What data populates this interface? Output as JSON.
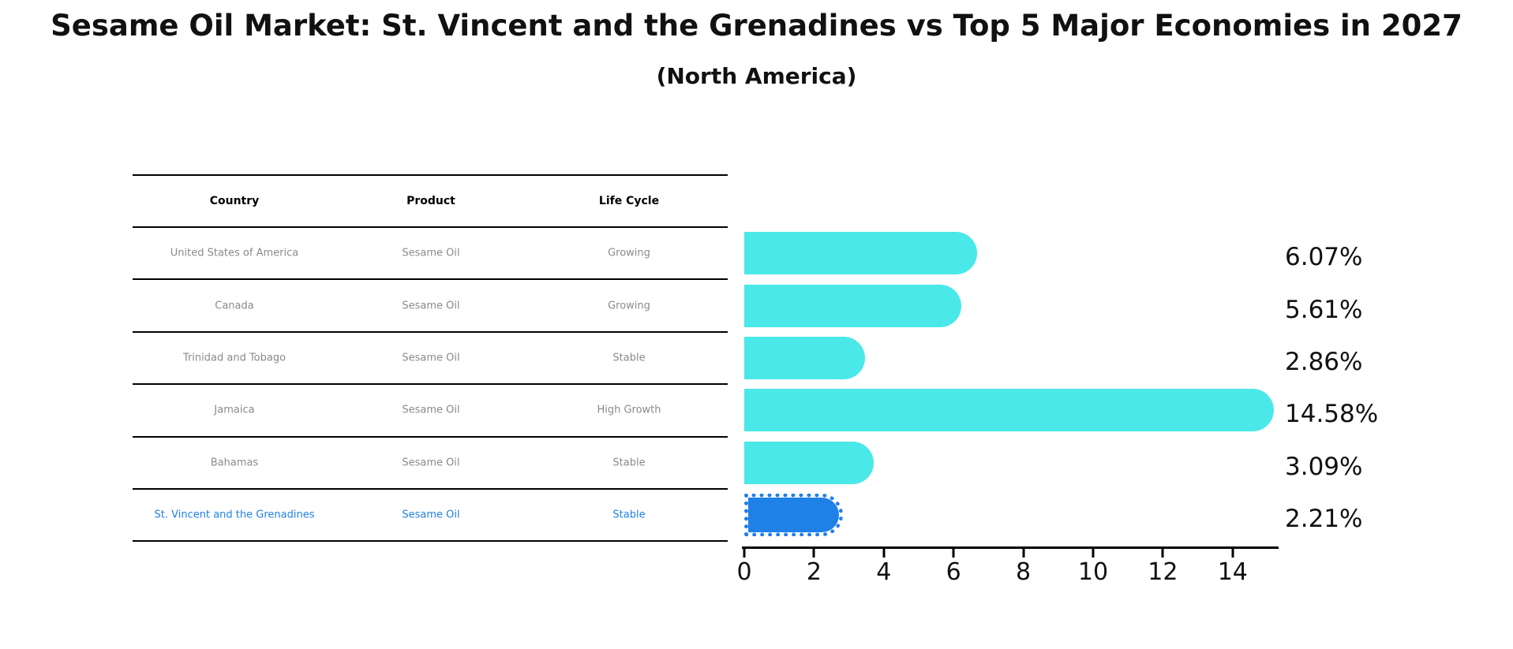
{
  "header": {
    "title": "Sesame Oil Market: St. Vincent and the Grenadines vs Top 5 Major Economies in 2027",
    "subtitle": "(North America)"
  },
  "table": {
    "columns": [
      "Country",
      "Product",
      "Life Cycle"
    ],
    "rows": [
      {
        "country": "United States of America",
        "product": "Sesame Oil",
        "life_cycle": "Growing",
        "highlight": false
      },
      {
        "country": "Canada",
        "product": "Sesame Oil",
        "life_cycle": "Growing",
        "highlight": false
      },
      {
        "country": "Trinidad and Tobago",
        "product": "Sesame Oil",
        "life_cycle": "Stable",
        "highlight": false
      },
      {
        "country": "Jamaica",
        "product": "Sesame Oil",
        "life_cycle": "High Growth",
        "highlight": false
      },
      {
        "country": "Bahamas",
        "product": "Sesame Oil",
        "life_cycle": "Stable",
        "highlight": false
      },
      {
        "country": "St. Vincent and the Grenadines",
        "product": "Sesame Oil",
        "life_cycle": "Stable",
        "highlight": true
      }
    ]
  },
  "chart_data": {
    "type": "bar",
    "orientation": "horizontal",
    "title": "Sesame Oil Market: St. Vincent and the Grenadines vs Top 5 Major Economies in 2027",
    "subtitle": "(North America)",
    "categories": [
      "United States of America",
      "Canada",
      "Trinidad and Tobago",
      "Jamaica",
      "Bahamas",
      "St. Vincent and the Grenadines"
    ],
    "values": [
      6.07,
      5.61,
      2.86,
      14.58,
      3.09,
      2.21
    ],
    "value_labels": [
      "6.07%",
      "5.61%",
      "2.86%",
      "14.58%",
      "3.09%",
      "2.21%"
    ],
    "unit": "%",
    "xlim": [
      0,
      15.3
    ],
    "x_ticks": [
      0,
      2,
      4,
      6,
      8,
      10,
      12,
      14
    ],
    "grid": false,
    "legend": "none",
    "highlight_index": 5,
    "colors": {
      "bar": "#4ae8e8",
      "highlight_bar": "#1f80e8",
      "highlight_text": "#1f80e8",
      "cell_text": "#8a8a8a",
      "axis": "#000000"
    }
  }
}
